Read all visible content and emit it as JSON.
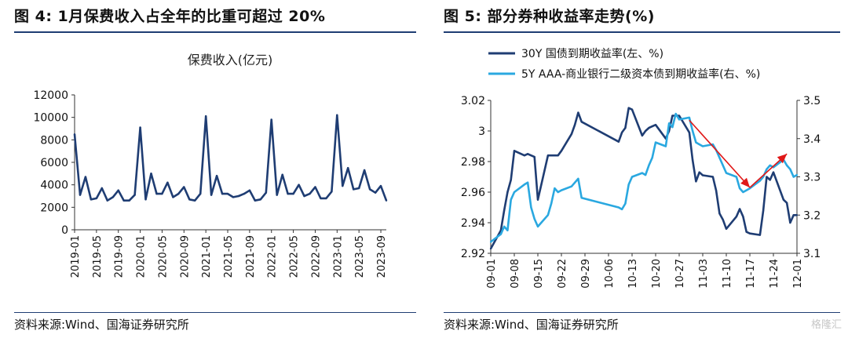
{
  "panels": [
    {
      "title": "图 4:  1月保费收入占全年的比重可超过 20%",
      "source": "资料来源:Wind、国海证券研究所"
    },
    {
      "title": "图 5:  部分券种收益率走势(%)",
      "source": "资料来源:Wind、国海证券研究所"
    }
  ],
  "watermark": "格隆汇",
  "chart_data": [
    {
      "type": "line",
      "title": "保费收入(亿元)",
      "xlabel": "",
      "ylabel": "",
      "ylim": [
        0,
        12000
      ],
      "yticks": [
        0,
        2000,
        4000,
        6000,
        8000,
        10000,
        12000
      ],
      "x_tick_labels": [
        "2019-01",
        "2019-05",
        "2019-09",
        "2020-01",
        "2020-05",
        "2020-09",
        "2021-01",
        "2021-05",
        "2021-09",
        "2022-01",
        "2022-05",
        "2022-09",
        "2023-01",
        "2023-05",
        "2023-09"
      ],
      "color": "#1f3d73",
      "series": [
        {
          "x": [
            "2019-01",
            "2019-02",
            "2019-03",
            "2019-04",
            "2019-05",
            "2019-06",
            "2019-07",
            "2019-08",
            "2019-09",
            "2019-10",
            "2019-11",
            "2019-12",
            "2020-01",
            "2020-02",
            "2020-03",
            "2020-04",
            "2020-05",
            "2020-06",
            "2020-07",
            "2020-08",
            "2020-09",
            "2020-10",
            "2020-11",
            "2020-12",
            "2021-01",
            "2021-02",
            "2021-03",
            "2021-04",
            "2021-05",
            "2021-06",
            "2021-07",
            "2021-08",
            "2021-09",
            "2021-10",
            "2021-11",
            "2021-12",
            "2022-01",
            "2022-02",
            "2022-03",
            "2022-04",
            "2022-05",
            "2022-06",
            "2022-07",
            "2022-08",
            "2022-09",
            "2022-10",
            "2022-11",
            "2022-12",
            "2023-01",
            "2023-02",
            "2023-03",
            "2023-04",
            "2023-05",
            "2023-06",
            "2023-07",
            "2023-08",
            "2023-09",
            "2023-10"
          ],
          "values": [
            8500,
            3100,
            4700,
            2700,
            2800,
            3700,
            2600,
            2900,
            3500,
            2600,
            2600,
            3100,
            9100,
            2700,
            5000,
            3200,
            3200,
            4200,
            2900,
            3200,
            3800,
            2700,
            2600,
            3200,
            10100,
            3100,
            4800,
            3200,
            3200,
            2900,
            3000,
            3200,
            3500,
            2600,
            2700,
            3300,
            9800,
            3100,
            4900,
            3200,
            3200,
            4000,
            3000,
            3200,
            3800,
            2800,
            2800,
            3400,
            10200,
            3900,
            5500,
            3600,
            3700,
            5300,
            3600,
            3300,
            3900,
            2600
          ]
        }
      ]
    },
    {
      "type": "line",
      "x_tick_labels": [
        "09-01",
        "09-08",
        "09-15",
        "09-22",
        "09-29",
        "10-06",
        "10-13",
        "10-20",
        "10-27",
        "11-03",
        "11-10",
        "11-17",
        "11-24",
        "12-01"
      ],
      "y_left": {
        "ylim": [
          2.92,
          3.02
        ],
        "ticks": [
          "2.92",
          "2.94",
          "2.96",
          "2.98",
          "3",
          "3.02"
        ]
      },
      "y_right": {
        "ylim": [
          3.1,
          3.5
        ],
        "ticks": [
          "3.1",
          "3.2",
          "3.3",
          "3.4",
          "3.5"
        ]
      },
      "legend": "top-left",
      "series": [
        {
          "name": "30Y 国债到期收益率(左、%)",
          "axis": "left",
          "color": "#1f3d73",
          "x": [
            "09-01",
            "09-04",
            "09-05",
            "09-06",
            "09-07",
            "09-08",
            "09-11",
            "09-12",
            "09-13",
            "09-14",
            "09-15",
            "09-18",
            "09-19",
            "09-20",
            "09-21",
            "09-22",
            "09-25",
            "09-26",
            "09-27",
            "09-28",
            "10-09",
            "10-10",
            "10-11",
            "10-12",
            "10-13",
            "10-16",
            "10-17",
            "10-18",
            "10-19",
            "10-20",
            "10-23",
            "10-24",
            "10-25",
            "10-26",
            "10-27",
            "10-30",
            "10-31",
            "11-01",
            "11-02",
            "11-03",
            "11-06",
            "11-07",
            "11-08",
            "11-09",
            "11-10",
            "11-13",
            "11-14",
            "11-15",
            "11-16",
            "11-17",
            "11-20",
            "11-21",
            "11-22",
            "11-23",
            "11-24",
            "11-27",
            "11-28",
            "11-29",
            "11-30",
            "12-01"
          ],
          "values": [
            2.923,
            2.935,
            2.948,
            2.96,
            2.968,
            2.987,
            2.984,
            2.985,
            2.984,
            2.983,
            2.955,
            2.984,
            2.984,
            2.984,
            2.984,
            2.987,
            2.998,
            3.004,
            3.012,
            3.006,
            2.993,
            2.999,
            3.002,
            3.015,
            3.014,
            2.997,
            3.0,
            3.002,
            3.003,
            3.004,
            2.995,
            3.0,
            3.01,
            3.01,
            3.01,
            2.999,
            2.981,
            2.967,
            2.973,
            2.971,
            2.97,
            2.961,
            2.946,
            2.942,
            2.936,
            2.944,
            2.949,
            2.944,
            2.934,
            2.933,
            2.932,
            2.948,
            2.97,
            2.968,
            2.973,
            2.955,
            2.953,
            2.94,
            2.945,
            2.945
          ]
        },
        {
          "name": "5Y AAA-商业银行二级资本债到期收益率(右、%)",
          "axis": "right",
          "color": "#2aa8e0",
          "x": [
            "09-01",
            "09-04",
            "09-05",
            "09-06",
            "09-07",
            "09-08",
            "09-11",
            "09-12",
            "09-13",
            "09-14",
            "09-15",
            "09-18",
            "09-19",
            "09-20",
            "09-21",
            "09-22",
            "09-25",
            "09-26",
            "09-27",
            "09-28",
            "10-09",
            "10-10",
            "10-11",
            "10-12",
            "10-13",
            "10-16",
            "10-17",
            "10-18",
            "10-19",
            "10-20",
            "10-23",
            "10-24",
            "10-25",
            "10-26",
            "10-27",
            "10-30",
            "10-31",
            "11-01",
            "11-02",
            "11-03",
            "11-06",
            "11-07",
            "11-08",
            "11-09",
            "11-10",
            "11-13",
            "11-14",
            "11-15",
            "11-16",
            "11-17",
            "11-20",
            "11-21",
            "11-22",
            "11-23",
            "11-24",
            "11-27",
            "11-28",
            "11-29",
            "11-30",
            "12-01"
          ],
          "values": [
            3.13,
            3.15,
            3.17,
            3.16,
            3.24,
            3.26,
            3.28,
            3.285,
            3.22,
            3.19,
            3.17,
            3.2,
            3.23,
            3.27,
            3.26,
            3.265,
            3.275,
            3.285,
            3.295,
            3.245,
            3.22,
            3.215,
            3.23,
            3.28,
            3.3,
            3.31,
            3.305,
            3.33,
            3.35,
            3.39,
            3.38,
            3.44,
            3.43,
            3.465,
            3.45,
            3.455,
            3.42,
            3.39,
            3.385,
            3.38,
            3.385,
            3.37,
            3.35,
            3.33,
            3.31,
            3.3,
            3.27,
            3.26,
            3.265,
            3.27,
            3.29,
            3.3,
            3.32,
            3.33,
            3.325,
            3.345,
            3.33,
            3.32,
            3.3,
            3.305
          ]
        }
      ],
      "annotations": [
        {
          "type": "arrow",
          "color": "#e01818",
          "from": [
            "10-30",
            3.007
          ],
          "to": [
            "11-17",
            2.963
          ]
        },
        {
          "type": "arrow",
          "color": "#e01818",
          "from": [
            "11-17",
            2.963
          ],
          "to": [
            "11-28",
            2.985
          ]
        }
      ]
    }
  ]
}
